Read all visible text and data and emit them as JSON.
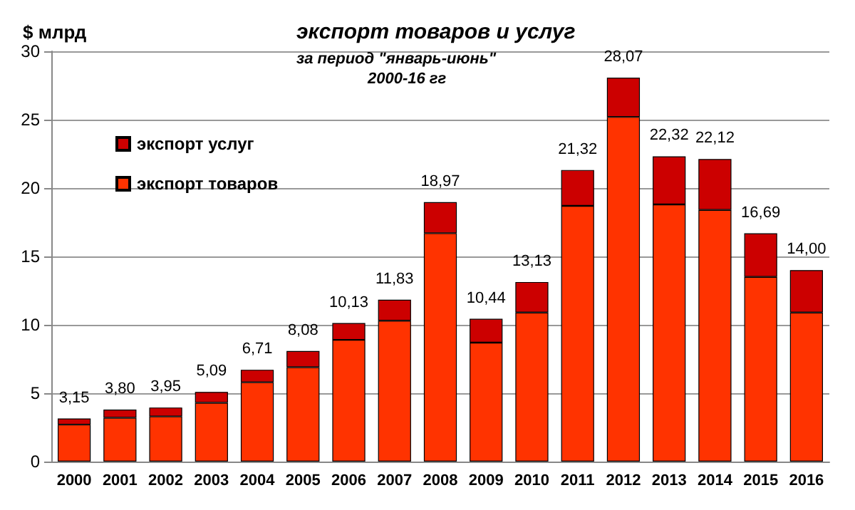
{
  "chart_data": {
    "type": "bar",
    "title": "экспорт товаров и услуг",
    "subtitle": "за период \"январь-июнь\"",
    "annotations": [
      "2000-16 гг"
    ],
    "ylabel": "$ млрд",
    "categories": [
      "2000",
      "2001",
      "2002",
      "2003",
      "2004",
      "2005",
      "2006",
      "2007",
      "2008",
      "2009",
      "2010",
      "2011",
      "2012",
      "2013",
      "2014",
      "2015",
      "2016"
    ],
    "stacked": true,
    "series": [
      {
        "name": "экспорт товаров",
        "color": "#ff3300",
        "values": [
          2.7,
          3.2,
          3.3,
          4.3,
          5.8,
          6.9,
          8.9,
          10.3,
          16.7,
          8.7,
          10.9,
          18.7,
          25.2,
          18.8,
          18.4,
          13.5,
          10.9
        ]
      },
      {
        "name": "экспорт услуг",
        "color": "#cc0000",
        "values": [
          0.45,
          0.6,
          0.65,
          0.79,
          0.91,
          1.18,
          1.23,
          1.53,
          2.27,
          1.74,
          2.23,
          2.62,
          2.87,
          3.52,
          3.72,
          3.19,
          3.1
        ]
      }
    ],
    "totals": [
      "3,15",
      "3,80",
      "3,95",
      "5,09",
      "6,71",
      "8,08",
      "10,13",
      "11,83",
      "18,97",
      "10,44",
      "13,13",
      "21,32",
      "28,07",
      "22,32",
      "22,12",
      "16,69",
      "14,00"
    ],
    "ylim": [
      0,
      30
    ],
    "yticks": [
      0,
      5,
      10,
      15,
      20,
      25,
      30
    ],
    "grid": "y",
    "legend": "top left"
  }
}
